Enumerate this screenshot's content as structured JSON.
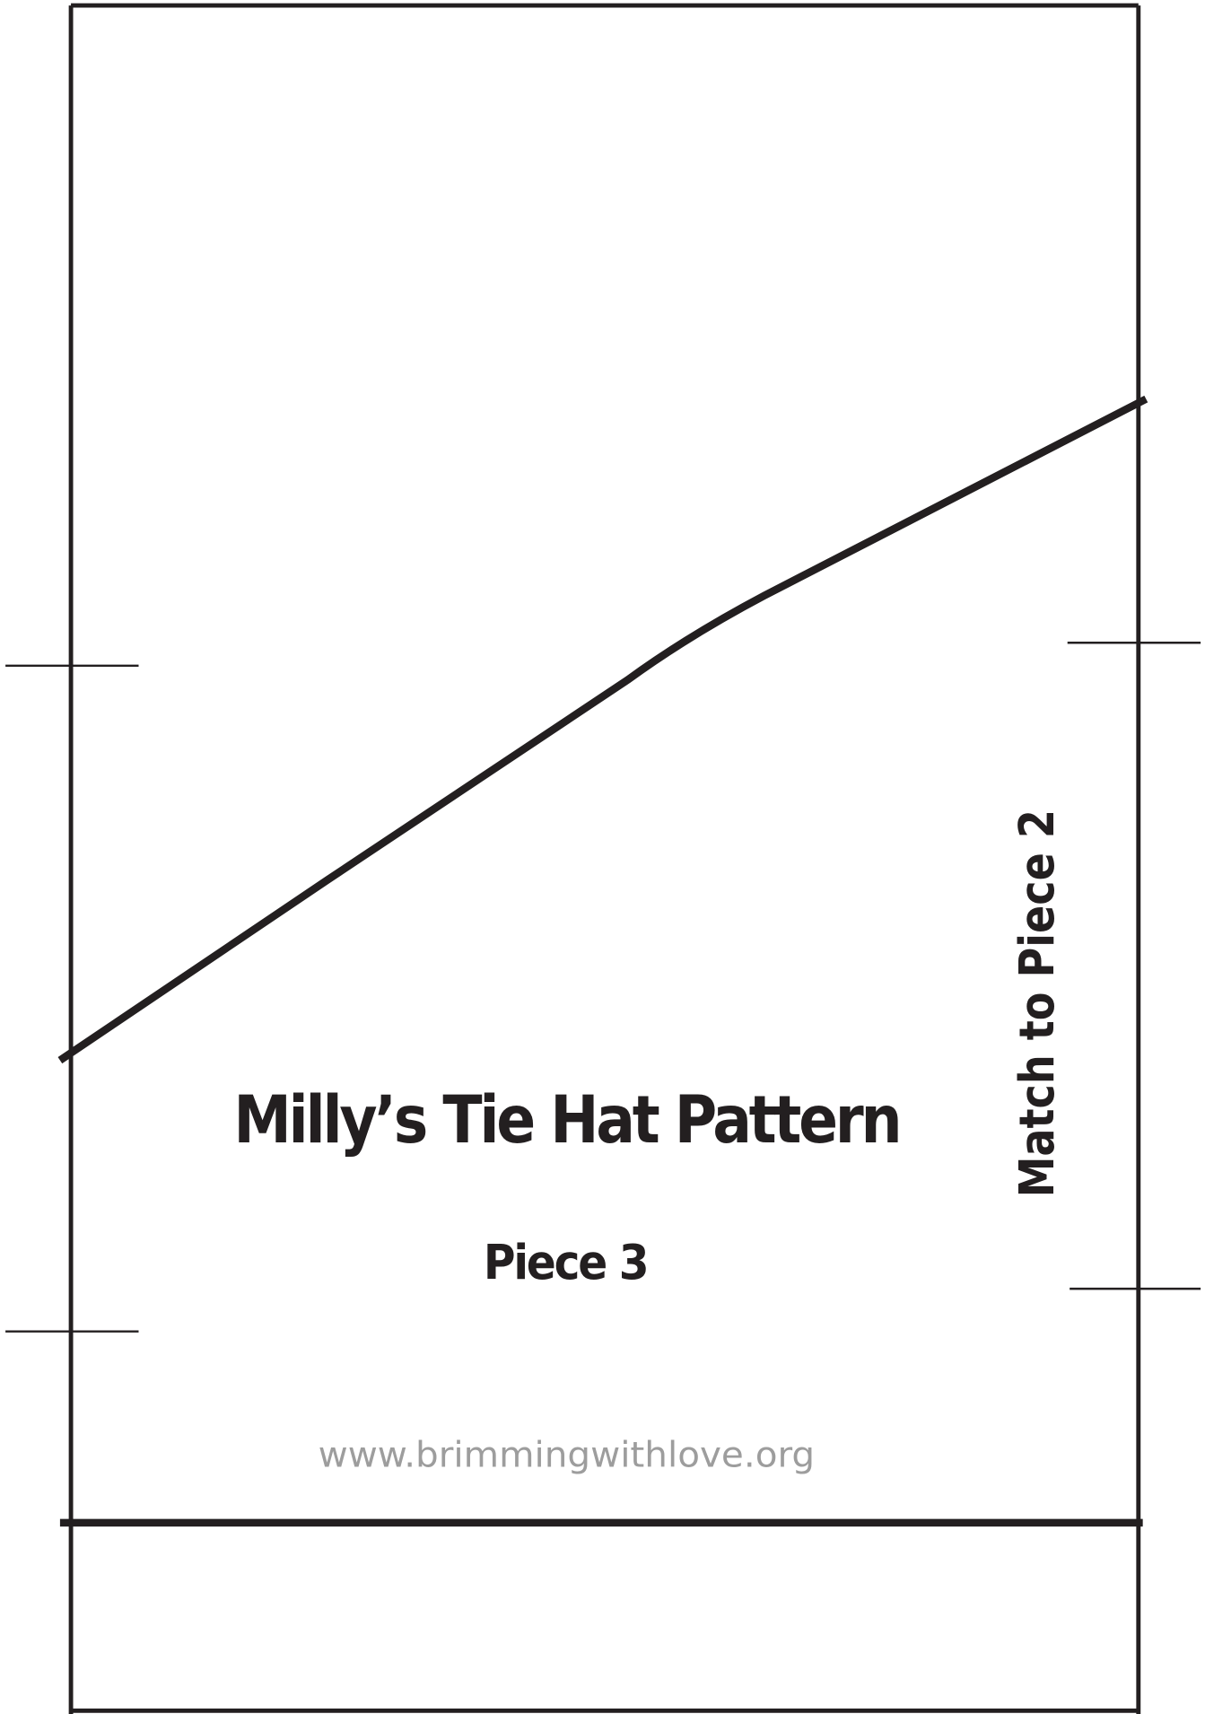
{
  "pattern": {
    "title": "Milly’s Tie Hat Pattern",
    "piece": "Piece 3",
    "side_label": "Match to Piece 2",
    "website": "www.brimmingwithlove.org"
  }
}
